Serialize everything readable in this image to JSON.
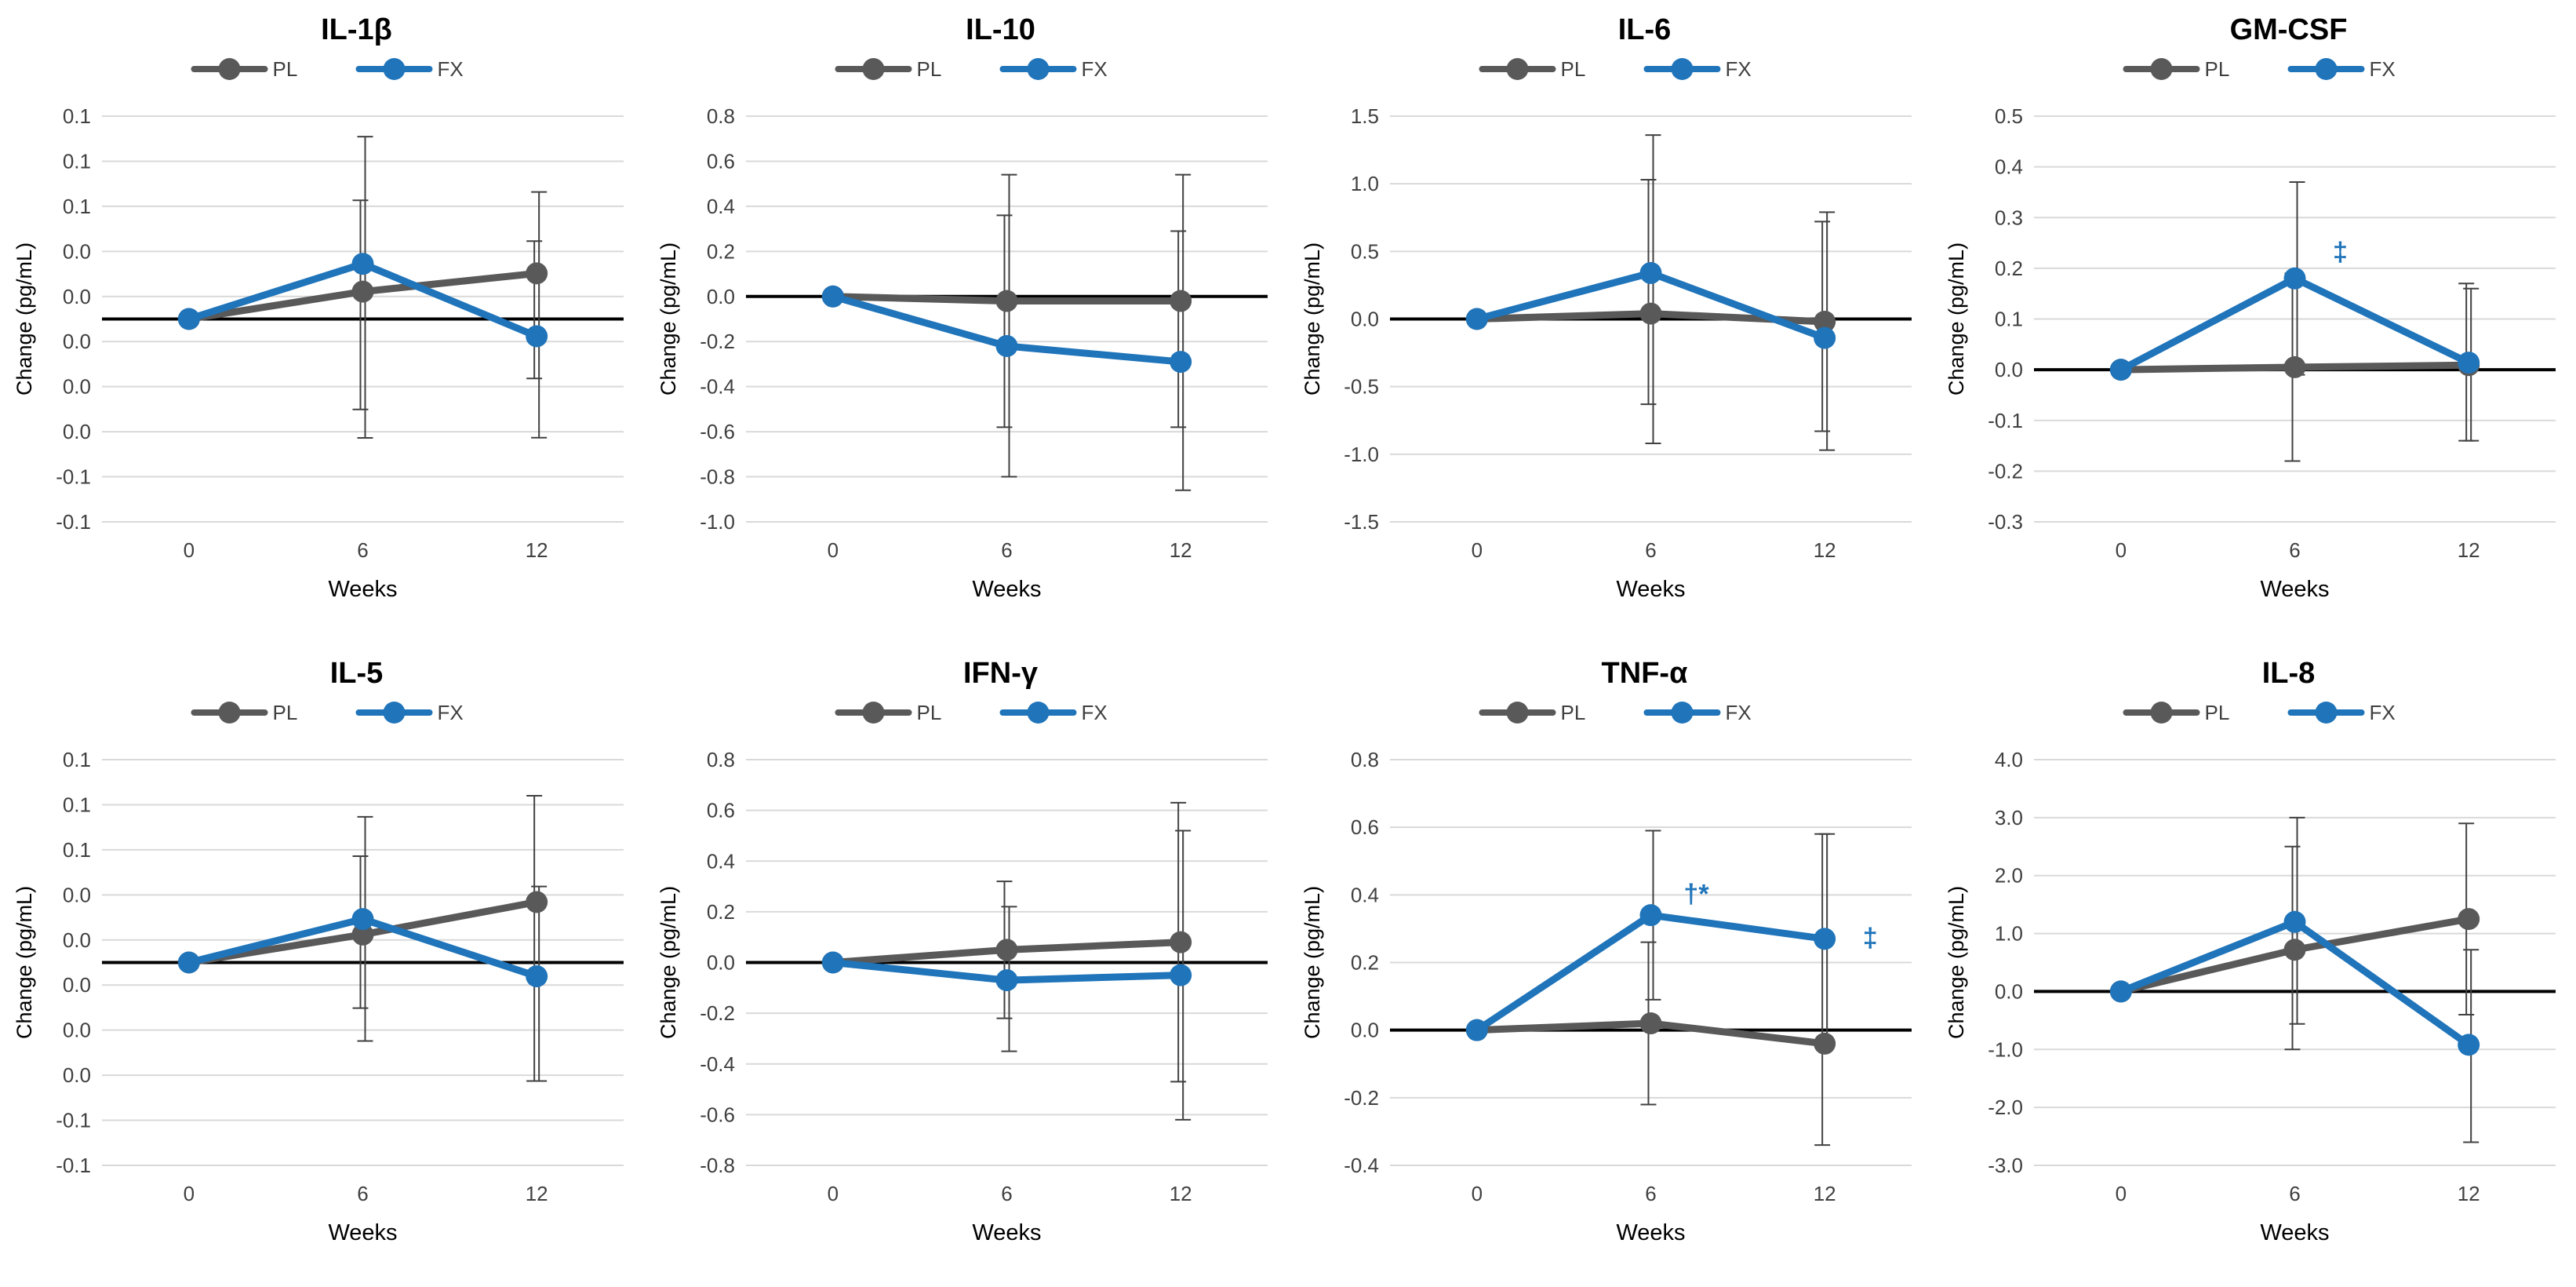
{
  "colors": {
    "pl": "#595959",
    "fx": "#1F74BA",
    "grid": "#d9d9d9",
    "zero": "#000000",
    "err": "#404040",
    "text": "#404040"
  },
  "legend": {
    "pl": "PL",
    "fx": "FX"
  },
  "chart_data": [
    {
      "type": "line",
      "title": "IL-1β",
      "xlabel": "Weeks",
      "ylabel": "Change (pg/mL)",
      "categories": [
        "0",
        "6",
        "12"
      ],
      "ylim": [
        -0.1,
        0.1
      ],
      "yticks": [
        "0.1",
        "0.1",
        "0.1",
        "0.0",
        "0.0",
        "0.0",
        "0.0",
        "0.0",
        "-0.1",
        "-0.1"
      ],
      "series": [
        {
          "name": "PL",
          "values": [
            0.0,
            0.0135,
            0.0225
          ],
          "err_hi": [
            0.0,
            0.0585,
            0.0384
          ],
          "err_lo": [
            0.0,
            -0.0446,
            -0.0293
          ]
        },
        {
          "name": "FX",
          "values": [
            0.0,
            0.0272,
            -0.0085
          ],
          "err_hi": [
            0.0,
            0.0899,
            0.0626
          ],
          "err_lo": [
            0.0,
            -0.0586,
            -0.0585
          ]
        }
      ],
      "annotations": []
    },
    {
      "type": "line",
      "title": "IL-10",
      "xlabel": "Weeks",
      "ylabel": "Change (pg/mL)",
      "categories": [
        "0",
        "6",
        "12"
      ],
      "ylim": [
        -1.0,
        0.8
      ],
      "yticks": [
        "0.8",
        "0.6",
        "0.4",
        "0.2",
        "0.0",
        "-0.2",
        "-0.4",
        "-0.6",
        "-0.8",
        "-1.0"
      ],
      "series": [
        {
          "name": "PL",
          "values": [
            0.0,
            -0.02,
            -0.02
          ],
          "err_hi": [
            0.0,
            0.36,
            0.29
          ],
          "err_lo": [
            0.0,
            -0.58,
            -0.58
          ]
        },
        {
          "name": "FX",
          "values": [
            0.0,
            -0.22,
            -0.29
          ],
          "err_hi": [
            0.0,
            0.54,
            0.54
          ],
          "err_lo": [
            0.0,
            -0.8,
            -0.86
          ]
        }
      ],
      "annotations": []
    },
    {
      "type": "line",
      "title": "IL-6",
      "xlabel": "Weeks",
      "ylabel": "Change (pg/mL)",
      "categories": [
        "0",
        "6",
        "12"
      ],
      "ylim": [
        -1.5,
        1.5
      ],
      "yticks": [
        "1.5",
        "1.0",
        "0.5",
        "0.0",
        "-0.5",
        "-1.0",
        "-1.5"
      ],
      "series": [
        {
          "name": "PL",
          "values": [
            0.0,
            0.04,
            -0.02
          ],
          "err_hi": [
            0.0,
            1.03,
            0.72
          ],
          "err_lo": [
            0.0,
            -0.63,
            -0.83
          ]
        },
        {
          "name": "FX",
          "values": [
            0.0,
            0.34,
            -0.14
          ],
          "err_hi": [
            0.0,
            1.36,
            0.79
          ],
          "err_lo": [
            0.0,
            -0.92,
            -0.97
          ]
        }
      ],
      "annotations": []
    },
    {
      "type": "line",
      "title": "GM-CSF",
      "xlabel": "Weeks",
      "ylabel": "Change (pg/mL)",
      "categories": [
        "0",
        "6",
        "12"
      ],
      "ylim": [
        -0.3,
        0.5
      ],
      "yticks": [
        "0.5",
        "0.4",
        "0.3",
        "0.2",
        "0.1",
        "0.0",
        "-0.1",
        "-0.2",
        "-0.3"
      ],
      "series": [
        {
          "name": "PL",
          "values": [
            0.0,
            0.005,
            0.009
          ],
          "err_hi": [
            0.0,
            0.19,
            0.17
          ],
          "err_lo": [
            0.0,
            -0.18,
            -0.14
          ]
        },
        {
          "name": "FX",
          "values": [
            0.0,
            0.18,
            0.014
          ],
          "err_hi": [
            0.0,
            0.37,
            0.16
          ],
          "err_lo": [
            0.0,
            -0.01,
            -0.14
          ]
        }
      ],
      "annotations": [
        {
          "text": "‡",
          "category": "6",
          "value": 0.23
        }
      ]
    },
    {
      "type": "line",
      "title": "IL-5",
      "xlabel": "Weeks",
      "ylabel": "Change (pg/mL)",
      "categories": [
        "0",
        "6",
        "12"
      ],
      "ylim": [
        -0.1,
        0.1
      ],
      "yticks": [
        "0.1",
        "0.1",
        "0.1",
        "0.0",
        "0.0",
        "0.0",
        "0.0",
        "0.0",
        "-0.1",
        "-0.1"
      ],
      "series": [
        {
          "name": "PL",
          "values": [
            0.0,
            0.0138,
            0.0298
          ],
          "err_hi": [
            0.0,
            0.0524,
            0.0822
          ],
          "err_lo": [
            0.0,
            -0.0225,
            -0.0584
          ]
        },
        {
          "name": "FX",
          "values": [
            0.0,
            0.0214,
            -0.0068
          ],
          "err_hi": [
            0.0,
            0.0718,
            0.0375
          ],
          "err_lo": [
            0.0,
            -0.0387,
            -0.0584
          ]
        }
      ],
      "annotations": []
    },
    {
      "type": "line",
      "title": "IFN-γ",
      "xlabel": "Weeks",
      "ylabel": "Change (pg/mL)",
      "categories": [
        "0",
        "6",
        "12"
      ],
      "ylim": [
        -0.8,
        0.8
      ],
      "yticks": [
        "0.8",
        "0.6",
        "0.4",
        "0.2",
        "0.0",
        "-0.2",
        "-0.4",
        "-0.6",
        "-0.8"
      ],
      "series": [
        {
          "name": "PL",
          "values": [
            0.0,
            0.05,
            0.08
          ],
          "err_hi": [
            0.0,
            0.32,
            0.63
          ],
          "err_lo": [
            0.0,
            -0.22,
            -0.47
          ]
        },
        {
          "name": "FX",
          "values": [
            0.0,
            -0.07,
            -0.05
          ],
          "err_hi": [
            0.0,
            0.22,
            0.52
          ],
          "err_lo": [
            0.0,
            -0.35,
            -0.62
          ]
        }
      ],
      "annotations": []
    },
    {
      "type": "line",
      "title": "TNF-α",
      "xlabel": "Weeks",
      "ylabel": "Change (pg/mL)",
      "categories": [
        "0",
        "6",
        "12"
      ],
      "ylim": [
        -0.4,
        0.8
      ],
      "yticks": [
        "0.8",
        "0.6",
        "0.4",
        "0.2",
        "0.0",
        "-0.2",
        "-0.4"
      ],
      "series": [
        {
          "name": "PL",
          "values": [
            0.0,
            0.02,
            -0.04
          ],
          "err_hi": [
            0.0,
            0.26,
            0.58
          ],
          "err_lo": [
            0.0,
            -0.22,
            -0.34
          ]
        },
        {
          "name": "FX",
          "values": [
            0.0,
            0.34,
            0.27
          ],
          "err_hi": [
            0.0,
            0.59,
            0.58
          ],
          "err_lo": [
            0.0,
            0.09,
            -0.04
          ]
        }
      ],
      "annotations": [
        {
          "text": "†*",
          "category": "6",
          "value": 0.4
        },
        {
          "text": "‡",
          "category": "12",
          "value": 0.27
        }
      ]
    },
    {
      "type": "line",
      "title": "IL-8",
      "xlabel": "Weeks",
      "ylabel": "Change (pg/mL)",
      "categories": [
        "0",
        "6",
        "12"
      ],
      "ylim": [
        -3.0,
        4.0
      ],
      "yticks": [
        "4.0",
        "3.0",
        "2.0",
        "1.0",
        "0.0",
        "-1.0",
        "-2.0",
        "-3.0"
      ],
      "series": [
        {
          "name": "PL",
          "values": [
            0.0,
            0.72,
            1.25
          ],
          "err_hi": [
            0.0,
            2.5,
            2.9
          ],
          "err_lo": [
            0.0,
            -1.0,
            -0.4
          ]
        },
        {
          "name": "FX",
          "values": [
            0.0,
            1.2,
            -0.92
          ],
          "err_hi": [
            0.0,
            3.0,
            0.72
          ],
          "err_lo": [
            0.0,
            -0.56,
            -2.6
          ]
        }
      ],
      "annotations": []
    }
  ]
}
